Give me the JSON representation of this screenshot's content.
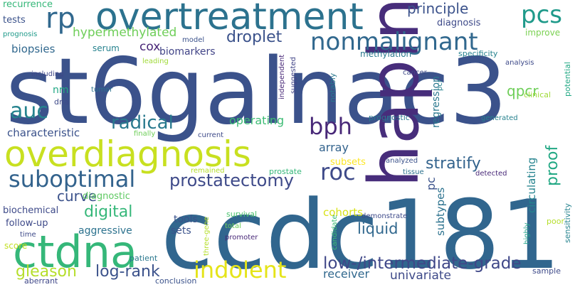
{
  "words": [
    {
      "text": "st6galnac3",
      "color": "#3b528b"
    },
    {
      "text": "ccdc181",
      "color": "#31668e"
    },
    {
      "text": "overtreatment",
      "color": "#2c728e"
    },
    {
      "text": "hapln3",
      "color": "#472d7b"
    },
    {
      "text": "overdiagnosis",
      "color": "#c8e020"
    },
    {
      "text": "ctdna",
      "color": "#35b779"
    },
    {
      "text": "nonmalignant",
      "color": "#31688e"
    },
    {
      "text": "rp",
      "color": "#31688e"
    },
    {
      "text": "pcs",
      "color": "#1f9a8a"
    },
    {
      "text": "auc",
      "color": "#25838e"
    },
    {
      "text": "bph",
      "color": "#482878"
    },
    {
      "text": "roc",
      "color": "#3e4a89"
    },
    {
      "text": "suboptimal",
      "color": "#33638d"
    },
    {
      "text": "indolent",
      "color": "#e5e419"
    },
    {
      "text": "radical",
      "color": "#29798e"
    },
    {
      "text": "prostatectomy",
      "color": "#3e4a89"
    },
    {
      "text": "droplet",
      "color": "#3b528b"
    },
    {
      "text": "principle",
      "color": "#3b528b"
    },
    {
      "text": "hypermethylated",
      "color": "#6ece58"
    },
    {
      "text": "stratify",
      "color": "#33638d"
    },
    {
      "text": "proof",
      "color": "#22a884"
    },
    {
      "text": "low-/intermediate-grade",
      "color": "#3f4788"
    },
    {
      "text": "liquid",
      "color": "#31688e"
    },
    {
      "text": "digital",
      "color": "#35b779"
    },
    {
      "text": "curve",
      "color": "#3b528b"
    },
    {
      "text": "gleason",
      "color": "#b5de2b"
    },
    {
      "text": "log-rank",
      "color": "#3b528b"
    },
    {
      "text": "qpcr",
      "color": "#6ece58"
    },
    {
      "text": "cox",
      "color": "#482677"
    },
    {
      "text": "biomarkers",
      "color": "#414487"
    },
    {
      "text": "operating",
      "color": "#3dbc74"
    },
    {
      "text": "characteristic",
      "color": "#3b528b"
    },
    {
      "text": "auc",
      "color": "#25838e"
    },
    {
      "text": "recurrence",
      "color": "#35b779"
    },
    {
      "text": "tests",
      "color": "#3b528b"
    },
    {
      "text": "prognosis",
      "color": "#1f9a8a"
    },
    {
      "text": "biopsies",
      "color": "#31688e"
    },
    {
      "text": "serum",
      "color": "#26828e"
    },
    {
      "text": "model",
      "color": "#3b528b"
    },
    {
      "text": "diagnosis",
      "color": "#3e4a89"
    },
    {
      "text": "improve",
      "color": "#7ad151"
    },
    {
      "text": "methylation",
      "color": "#2a788e"
    },
    {
      "text": "specificity",
      "color": "#26828e"
    },
    {
      "text": "analysis",
      "color": "#3e4a89"
    },
    {
      "text": "potential",
      "color": "#22a884"
    },
    {
      "text": "including",
      "color": "#3f4788"
    },
    {
      "text": "nm",
      "color": "#22a884"
    },
    {
      "text": "dna",
      "color": "#3e4a89"
    },
    {
      "text": "tumor",
      "color": "#2c728e"
    },
    {
      "text": "leading",
      "color": "#a0da39"
    },
    {
      "text": "independent",
      "color": "#482878"
    },
    {
      "text": "suggested",
      "color": "#414487"
    },
    {
      "text": "notably",
      "color": "#2a788e"
    },
    {
      "text": "regression",
      "color": "#2a788e"
    },
    {
      "text": "pcr",
      "color": "#26828e"
    },
    {
      "text": "cancer",
      "color": "#3e4a89"
    },
    {
      "text": "clinical",
      "color": "#a0da39"
    },
    {
      "text": "prognostic",
      "color": "#2a788e"
    },
    {
      "text": "generated",
      "color": "#26828e"
    },
    {
      "text": "sensitivity",
      "color": "#25838e"
    },
    {
      "text": "finally",
      "color": "#6ece58"
    },
    {
      "text": "current",
      "color": "#3e4a89"
    },
    {
      "text": "array",
      "color": "#33638d"
    },
    {
      "text": "subsets",
      "color": "#fde725"
    },
    {
      "text": "analyzed",
      "color": "#3b528b"
    },
    {
      "text": "tissue",
      "color": "#2c728e"
    },
    {
      "text": "detected",
      "color": "#482878"
    },
    {
      "text": "remained",
      "color": "#b5de2b"
    },
    {
      "text": "prostate",
      "color": "#35b779"
    },
    {
      "text": "pc",
      "color": "#3b528b"
    },
    {
      "text": "diagnostic",
      "color": "#5ec962"
    },
    {
      "text": "circulating",
      "color": "#25838e"
    },
    {
      "text": "cohorts",
      "color": "#d8e219"
    },
    {
      "text": "subtypes",
      "color": "#2c728e"
    },
    {
      "text": "survival",
      "color": "#4ac16d"
    },
    {
      "text": "biochemical",
      "color": "#3e4a89"
    },
    {
      "text": "follow-up",
      "color": "#3e4a89"
    },
    {
      "text": "aggressive",
      "color": "#2c728e"
    },
    {
      "text": "tools",
      "color": "#3b528b"
    },
    {
      "text": "sets",
      "color": "#3b528b"
    },
    {
      "text": "demonstrate",
      "color": "#3e4a89"
    },
    {
      "text": "candidate",
      "color": "#3dbc74"
    },
    {
      "text": "highly",
      "color": "#1fa188"
    },
    {
      "text": "poor",
      "color": "#b5de2b"
    },
    {
      "text": "time",
      "color": "#3e4a89"
    },
    {
      "text": "three-gene",
      "color": "#b5de2b"
    },
    {
      "text": "total",
      "color": "#6ece58"
    },
    {
      "text": "promoter",
      "color": "#482878"
    },
    {
      "text": "score",
      "color": "#c2df23"
    },
    {
      "text": "receiver",
      "color": "#31688e"
    },
    {
      "text": "univariate",
      "color": "#3e4a89"
    },
    {
      "text": "patient",
      "color": "#2a788e"
    },
    {
      "text": "aberrant",
      "color": "#3f4788"
    },
    {
      "text": "conclusion",
      "color": "#3b528b"
    },
    {
      "text": "sample",
      "color": "#3e4a89"
    }
  ]
}
